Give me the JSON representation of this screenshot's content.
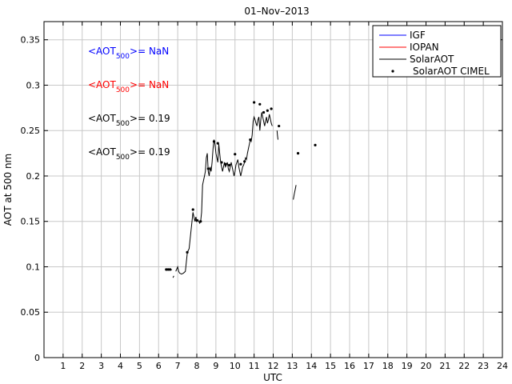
{
  "chart_data": {
    "type": "line",
    "title": "01–Nov–2013",
    "xlabel": "UTC",
    "ylabel": "AOT at 500 nm",
    "xlim": [
      0,
      24
    ],
    "ylim": [
      0,
      0.37
    ],
    "x_ticks": [
      1,
      2,
      3,
      4,
      5,
      6,
      7,
      8,
      9,
      10,
      11,
      12,
      13,
      14,
      15,
      16,
      17,
      18,
      19,
      20,
      21,
      22,
      23,
      24
    ],
    "x_tick_labels": [
      "1",
      "2",
      "3",
      "4",
      "5",
      "6",
      "7",
      "8",
      "9",
      "10",
      "11",
      "12",
      "13",
      "14",
      "15",
      "16",
      "17",
      "18",
      "19",
      "20",
      "21",
      "22",
      "23",
      "24"
    ],
    "y_ticks": [
      0,
      0.05,
      0.1,
      0.15,
      0.2,
      0.25,
      0.3,
      0.35
    ],
    "y_tick_labels": [
      "0",
      "0.05",
      "0.1",
      "0.15",
      "0.2",
      "0.25",
      "0.3",
      "0.35"
    ],
    "grid": true,
    "legend_position": "top-right",
    "legend": [
      {
        "label": "IGF",
        "color": "#0000ff",
        "style": "line"
      },
      {
        "label": "IOPAN",
        "color": "#ff0000",
        "style": "line"
      },
      {
        "label": "SolarAOT",
        "color": "#000000",
        "style": "line"
      },
      {
        "label": "SolarAOT CIMEL",
        "color": "#000000",
        "style": "marker"
      }
    ],
    "annotations": [
      {
        "prefix": "<AOT",
        "sub": "500",
        "suffix": ">=  NaN",
        "color": "#0000ff"
      },
      {
        "prefix": "<AOT",
        "sub": "500",
        "suffix": ">=  NaN",
        "color": "#ff0000"
      },
      {
        "prefix": "<AOT",
        "sub": "500",
        "suffix": ">= 0.19",
        "color": "#000000"
      },
      {
        "prefix": "<AOT",
        "sub": "500",
        "suffix": ">= 0.19",
        "color": "#000000"
      }
    ],
    "series": [
      {
        "name": "SolarAOT",
        "color": "#000000",
        "segments": [
          [
            [
              6.4,
              0.096
            ],
            [
              6.5,
              0.097
            ],
            [
              6.6,
              0.096
            ],
            [
              6.7,
              0.097
            ]
          ],
          [
            [
              6.75,
              0.088
            ],
            [
              6.8,
              0.09
            ]
          ],
          [
            [
              6.9,
              0.095
            ],
            [
              7.0,
              0.1
            ],
            [
              7.05,
              0.095
            ],
            [
              7.1,
              0.093
            ],
            [
              7.2,
              0.092
            ],
            [
              7.3,
              0.093
            ],
            [
              7.4,
              0.095
            ],
            [
              7.45,
              0.105
            ],
            [
              7.5,
              0.115
            ],
            [
              7.55,
              0.118
            ],
            [
              7.6,
              0.12
            ],
            [
              7.65,
              0.13
            ],
            [
              7.7,
              0.14
            ],
            [
              7.75,
              0.15
            ],
            [
              7.8,
              0.16
            ],
            [
              7.85,
              0.155
            ],
            [
              7.9,
              0.15
            ],
            [
              7.95,
              0.155
            ],
            [
              8.0,
              0.15
            ],
            [
              8.05,
              0.152
            ],
            [
              8.1,
              0.15
            ],
            [
              8.15,
              0.148
            ],
            [
              8.2,
              0.15
            ],
            [
              8.25,
              0.16
            ],
            [
              8.3,
              0.19
            ],
            [
              8.35,
              0.195
            ],
            [
              8.4,
              0.2
            ],
            [
              8.45,
              0.205
            ],
            [
              8.5,
              0.22
            ],
            [
              8.55,
              0.225
            ],
            [
              8.6,
              0.205
            ],
            [
              8.65,
              0.2
            ],
            [
              8.7,
              0.21
            ],
            [
              8.75,
              0.205
            ],
            [
              8.8,
              0.215
            ],
            [
              8.85,
              0.23
            ],
            [
              8.9,
              0.24
            ],
            [
              8.95,
              0.235
            ],
            [
              9.0,
              0.225
            ],
            [
              9.05,
              0.22
            ],
            [
              9.1,
              0.215
            ],
            [
              9.15,
              0.235
            ],
            [
              9.2,
              0.225
            ],
            [
              9.25,
              0.215
            ],
            [
              9.3,
              0.21
            ],
            [
              9.35,
              0.205
            ],
            [
              9.4,
              0.21
            ],
            [
              9.45,
              0.215
            ],
            [
              9.5,
              0.21
            ],
            [
              9.55,
              0.212
            ],
            [
              9.6,
              0.215
            ],
            [
              9.65,
              0.208
            ],
            [
              9.7,
              0.205
            ],
            [
              9.75,
              0.21
            ],
            [
              9.8,
              0.215
            ],
            [
              9.85,
              0.21
            ],
            [
              9.9,
              0.205
            ],
            [
              9.95,
              0.2
            ],
            [
              10.0,
              0.205
            ],
            [
              10.05,
              0.212
            ],
            [
              10.1,
              0.215
            ],
            [
              10.15,
              0.218
            ],
            [
              10.2,
              0.21
            ],
            [
              10.25,
              0.205
            ],
            [
              10.3,
              0.2
            ],
            [
              10.35,
              0.205
            ],
            [
              10.4,
              0.21
            ],
            [
              10.45,
              0.212
            ],
            [
              10.5,
              0.215
            ],
            [
              10.55,
              0.22
            ],
            [
              10.6,
              0.218
            ],
            [
              10.65,
              0.225
            ],
            [
              10.7,
              0.23
            ],
            [
              10.75,
              0.235
            ],
            [
              10.8,
              0.24
            ],
            [
              10.85,
              0.238
            ],
            [
              10.9,
              0.245
            ],
            [
              10.95,
              0.26
            ],
            [
              11.0,
              0.265
            ],
            [
              11.05,
              0.262
            ],
            [
              11.1,
              0.258
            ],
            [
              11.15,
              0.255
            ],
            [
              11.2,
              0.262
            ],
            [
              11.25,
              0.265
            ],
            [
              11.3,
              0.25
            ],
            [
              11.35,
              0.262
            ],
            [
              11.4,
              0.27
            ],
            [
              11.45,
              0.265
            ],
            [
              11.5,
              0.26
            ],
            [
              11.55,
              0.255
            ],
            [
              11.6,
              0.26
            ],
            [
              11.65,
              0.265
            ],
            [
              11.7,
              0.258
            ],
            [
              11.75,
              0.262
            ],
            [
              11.8,
              0.268
            ],
            [
              11.85,
              0.263
            ],
            [
              11.9,
              0.258
            ],
            [
              11.95,
              0.255
            ]
          ],
          [
            [
              12.2,
              0.25
            ],
            [
              12.22,
              0.245
            ],
            [
              12.25,
              0.24
            ]
          ],
          [
            [
              13.05,
              0.174
            ],
            [
              13.1,
              0.18
            ],
            [
              13.15,
              0.185
            ],
            [
              13.2,
              0.19
            ]
          ]
        ]
      }
    ],
    "cimel_points": [
      {
        "x": 6.4,
        "y": 0.097
      },
      {
        "x": 6.5,
        "y": 0.097
      },
      {
        "x": 6.6,
        "y": 0.097
      },
      {
        "x": 7.5,
        "y": 0.116
      },
      {
        "x": 7.8,
        "y": 0.163
      },
      {
        "x": 8.0,
        "y": 0.151
      },
      {
        "x": 8.2,
        "y": 0.15
      },
      {
        "x": 8.6,
        "y": 0.208
      },
      {
        "x": 8.9,
        "y": 0.238
      },
      {
        "x": 9.1,
        "y": 0.236
      },
      {
        "x": 9.3,
        "y": 0.215
      },
      {
        "x": 9.5,
        "y": 0.213
      },
      {
        "x": 9.7,
        "y": 0.212
      },
      {
        "x": 10.0,
        "y": 0.224
      },
      {
        "x": 10.3,
        "y": 0.213
      },
      {
        "x": 10.5,
        "y": 0.216
      },
      {
        "x": 10.8,
        "y": 0.24
      },
      {
        "x": 11.0,
        "y": 0.281
      },
      {
        "x": 11.3,
        "y": 0.279
      },
      {
        "x": 11.5,
        "y": 0.27
      },
      {
        "x": 11.7,
        "y": 0.272
      },
      {
        "x": 11.9,
        "y": 0.274
      },
      {
        "x": 12.3,
        "y": 0.255
      },
      {
        "x": 13.3,
        "y": 0.225
      },
      {
        "x": 14.2,
        "y": 0.234
      }
    ]
  }
}
